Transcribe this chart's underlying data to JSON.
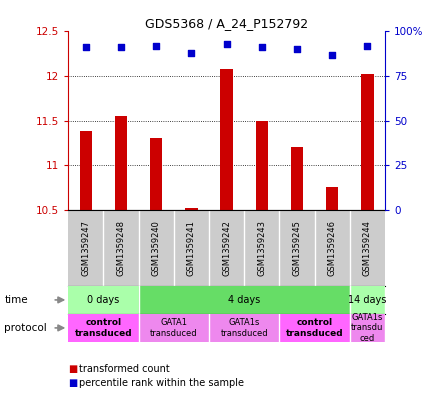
{
  "title": "GDS5368 / A_24_P152792",
  "samples": [
    "GSM1359247",
    "GSM1359248",
    "GSM1359240",
    "GSM1359241",
    "GSM1359242",
    "GSM1359243",
    "GSM1359245",
    "GSM1359246",
    "GSM1359244"
  ],
  "bar_values": [
    11.38,
    11.55,
    11.3,
    10.52,
    12.08,
    11.5,
    11.2,
    10.75,
    12.02
  ],
  "bar_base": 10.5,
  "dot_values_pct": [
    91,
    91,
    92,
    88,
    93,
    91,
    90,
    87,
    92
  ],
  "ylim_left": [
    10.5,
    12.5
  ],
  "ylim_right": [
    0,
    100
  ],
  "yticks_left": [
    10.5,
    11.0,
    11.5,
    12.0,
    12.5
  ],
  "yticks_right": [
    0,
    25,
    50,
    75,
    100
  ],
  "ytick_labels_left": [
    "10.5",
    "11",
    "11.5",
    "12",
    "12.5"
  ],
  "ytick_labels_right": [
    "0",
    "25",
    "50",
    "75",
    "100%"
  ],
  "bar_color": "#cc0000",
  "dot_color": "#0000cc",
  "time_groups": [
    {
      "label": "0 days",
      "start": 0,
      "end": 2,
      "color": "#aaffaa"
    },
    {
      "label": "4 days",
      "start": 2,
      "end": 8,
      "color": "#66dd66"
    },
    {
      "label": "14 days",
      "start": 8,
      "end": 9,
      "color": "#aaffaa"
    }
  ],
  "protocol_groups": [
    {
      "label": "control\ntransduced",
      "start": 0,
      "end": 2,
      "color": "#ff66ff",
      "bold": true
    },
    {
      "label": "GATA1\ntransduced",
      "start": 2,
      "end": 4,
      "color": "#ee88ee",
      "bold": false
    },
    {
      "label": "GATA1s\ntransduced",
      "start": 4,
      "end": 6,
      "color": "#ee88ee",
      "bold": false
    },
    {
      "label": "control\ntransduced",
      "start": 6,
      "end": 8,
      "color": "#ff66ff",
      "bold": true
    },
    {
      "label": "GATA1s\ntransdu\nced",
      "start": 8,
      "end": 9,
      "color": "#ee88ee",
      "bold": false
    }
  ],
  "sample_bg_color": "#cccccc",
  "left_axis_color": "#cc0000",
  "right_axis_color": "#0000cc",
  "legend": [
    {
      "color": "#cc0000",
      "label": "transformed count"
    },
    {
      "color": "#0000cc",
      "label": "percentile rank within the sample"
    }
  ]
}
